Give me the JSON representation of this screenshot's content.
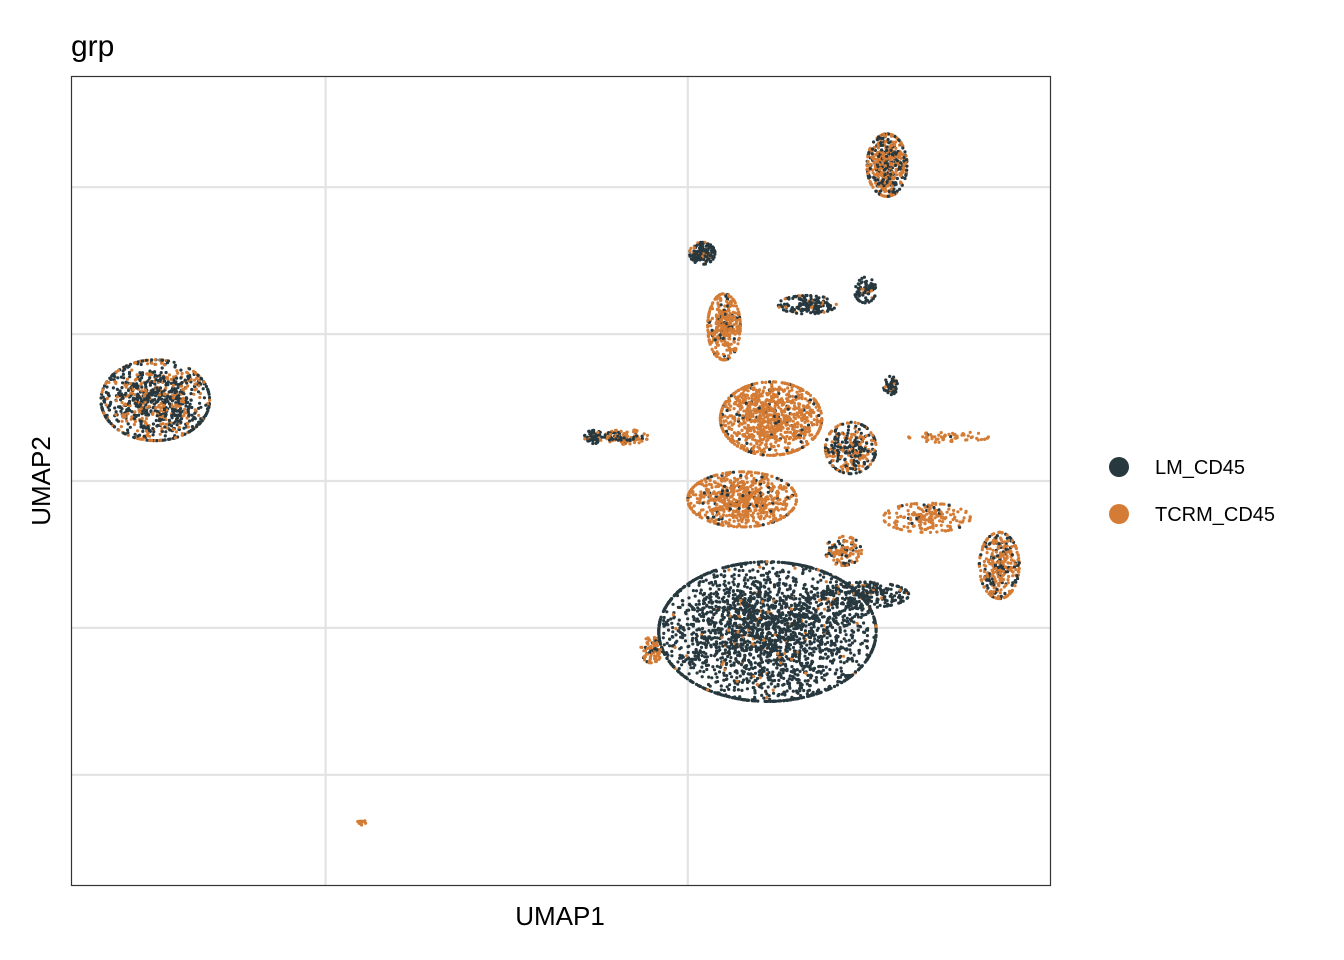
{
  "chart_data": {
    "type": "scatter",
    "title": "grp",
    "xlabel": "UMAP1",
    "ylabel": "UMAP2",
    "xlim": [
      -15,
      12
    ],
    "ylim": [
      -11,
      11
    ],
    "x_gridlines": [
      -8,
      2
    ],
    "y_gridlines": [
      -8,
      -4,
      0,
      4,
      8
    ],
    "tick_labels_shown": false,
    "grid": true,
    "legend_position": "right",
    "series": [
      {
        "name": "LM_CD45",
        "color": "#27383f"
      },
      {
        "name": "TCRM_CD45",
        "color": "#d47c35"
      }
    ],
    "clusters": [
      {
        "label": "left-island",
        "cx": -12.7,
        "cy": 2.2,
        "rx": 1.5,
        "ry": 1.1,
        "n": 950,
        "p_tcrm": 0.35
      },
      {
        "label": "tiny-bottom-island",
        "cx": -7.0,
        "cy": -9.3,
        "rx": 0.12,
        "ry": 0.07,
        "n": 18,
        "p_tcrm": 0.75
      },
      {
        "label": "top-right-island",
        "cx": 7.5,
        "cy": 8.6,
        "rx": 0.55,
        "ry": 0.85,
        "n": 520,
        "p_tcrm": 0.6
      },
      {
        "label": "big-lower-mass",
        "cx": 4.2,
        "cy": -4.1,
        "rx": 3.0,
        "ry": 1.9,
        "n": 2600,
        "p_tcrm": 0.04
      },
      {
        "label": "lower-right-arm",
        "cx": 6.9,
        "cy": -3.1,
        "rx": 1.2,
        "ry": 0.35,
        "n": 260,
        "p_tcrm": 0.05
      },
      {
        "label": "central-upper",
        "cx": 4.3,
        "cy": 1.7,
        "rx": 1.4,
        "ry": 1.0,
        "n": 1000,
        "p_tcrm": 0.92
      },
      {
        "label": "central-mid",
        "cx": 3.5,
        "cy": -0.5,
        "rx": 1.5,
        "ry": 0.75,
        "n": 750,
        "p_tcrm": 0.9
      },
      {
        "label": "upper-stream",
        "cx": 3.0,
        "cy": 4.2,
        "rx": 0.45,
        "ry": 0.9,
        "n": 380,
        "p_tcrm": 0.88
      },
      {
        "label": "top-spike",
        "cx": 2.4,
        "cy": 6.2,
        "rx": 0.35,
        "ry": 0.3,
        "n": 150,
        "p_tcrm": 0.25
      },
      {
        "label": "upper-right-arm",
        "cx": 5.3,
        "cy": 4.8,
        "rx": 0.8,
        "ry": 0.25,
        "n": 160,
        "p_tcrm": 0.1
      },
      {
        "label": "upper-right-knob",
        "cx": 6.9,
        "cy": 5.2,
        "rx": 0.3,
        "ry": 0.35,
        "n": 80,
        "p_tcrm": 0.05
      },
      {
        "label": "right-blob",
        "cx": 6.5,
        "cy": 0.9,
        "rx": 0.7,
        "ry": 0.7,
        "n": 300,
        "p_tcrm": 0.45
      },
      {
        "label": "right-knob",
        "cx": 7.6,
        "cy": 2.6,
        "rx": 0.2,
        "ry": 0.25,
        "n": 50,
        "p_tcrm": 0.1
      },
      {
        "label": "far-right-arm",
        "cx": 10.6,
        "cy": -2.3,
        "rx": 0.55,
        "ry": 0.9,
        "n": 360,
        "p_tcrm": 0.7
      },
      {
        "label": "right-band",
        "cx": 8.6,
        "cy": -1.0,
        "rx": 1.2,
        "ry": 0.4,
        "n": 200,
        "p_tcrm": 0.95
      },
      {
        "label": "left-arm",
        "cx": 0.3,
        "cy": 1.2,
        "rx": 0.6,
        "ry": 0.2,
        "n": 110,
        "p_tcrm": 0.65
      },
      {
        "label": "left-arm-tip",
        "cx": -0.6,
        "cy": 1.2,
        "rx": 0.25,
        "ry": 0.18,
        "n": 60,
        "p_tcrm": 0.1
      },
      {
        "label": "right-whisker",
        "cx": 9.2,
        "cy": 1.2,
        "rx": 1.1,
        "ry": 0.15,
        "n": 60,
        "p_tcrm": 0.95
      },
      {
        "label": "lower-left-edge",
        "cx": 1.0,
        "cy": -4.6,
        "rx": 0.3,
        "ry": 0.35,
        "n": 90,
        "p_tcrm": 0.8
      },
      {
        "label": "mid-lower-stream",
        "cx": 6.3,
        "cy": -1.9,
        "rx": 0.5,
        "ry": 0.4,
        "n": 120,
        "p_tcrm": 0.7
      }
    ],
    "sample_seed": 12345
  }
}
